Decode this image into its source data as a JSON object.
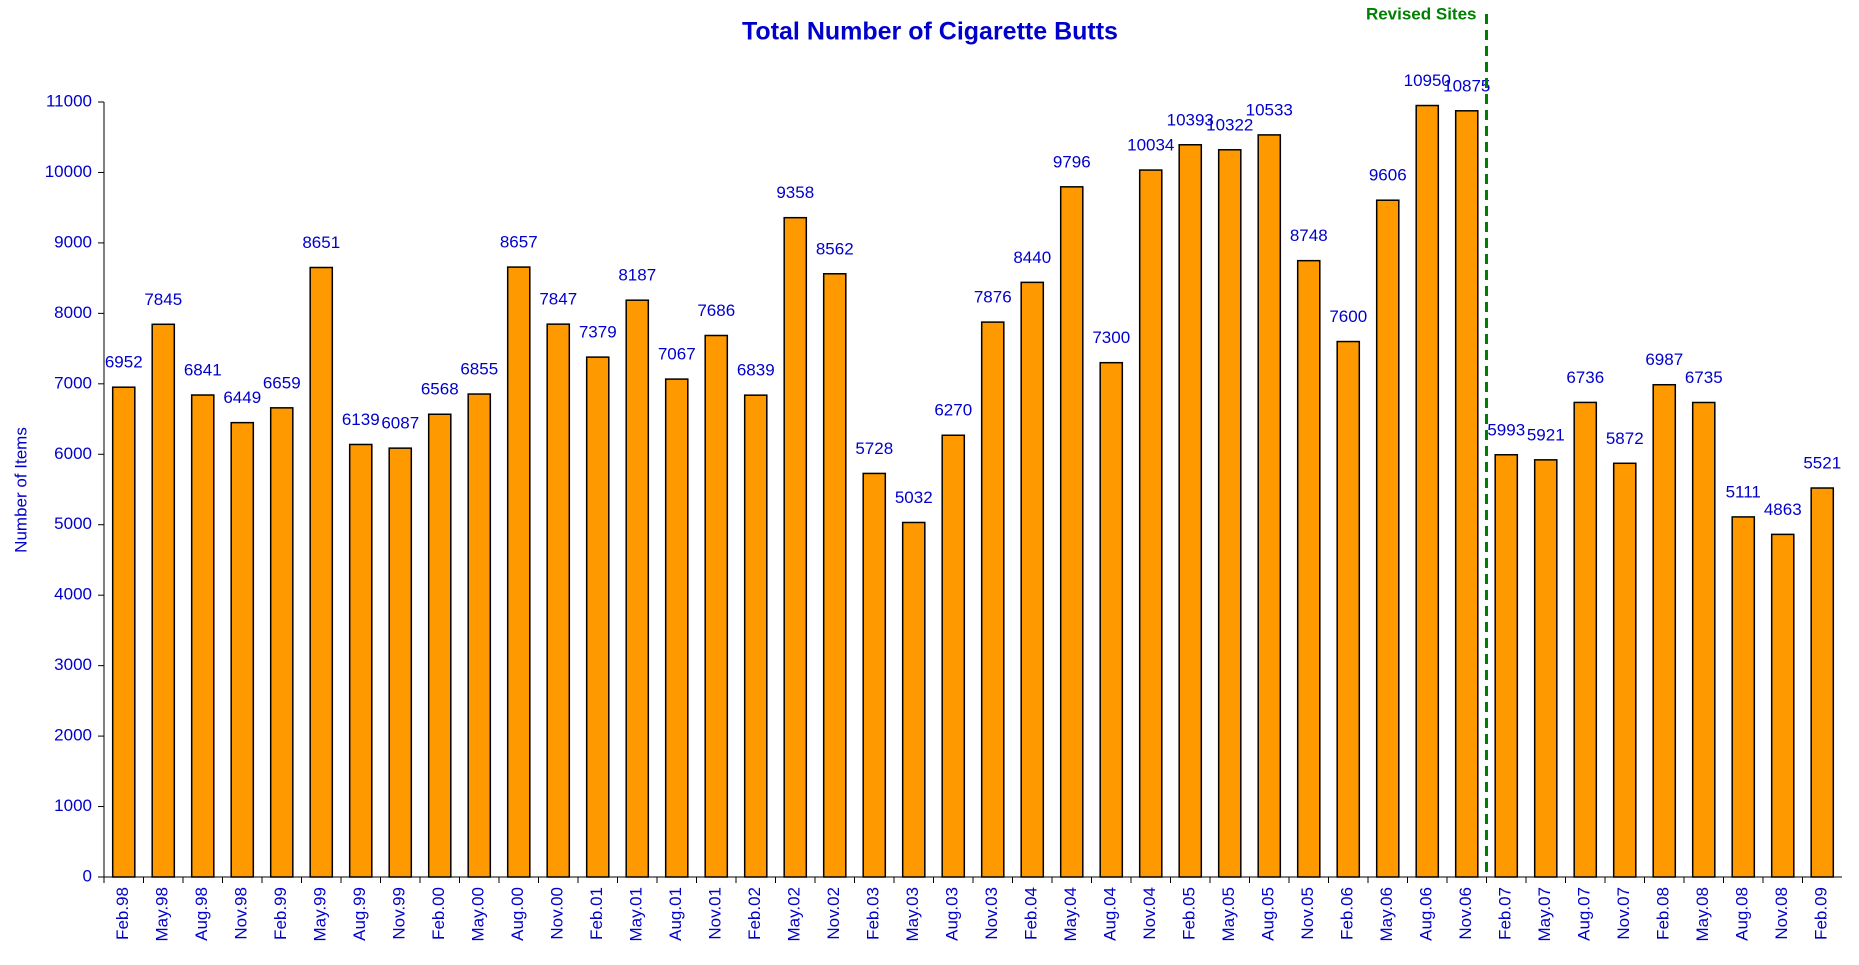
{
  "chart_data": {
    "type": "bar",
    "title": "Total Number of Cigarette Butts",
    "y_label": "Number of Items",
    "categories": [
      "Feb.98",
      "May.98",
      "Aug.98",
      "Nov.98",
      "Feb.99",
      "May.99",
      "Aug.99",
      "Nov.99",
      "Feb.00",
      "May.00",
      "Aug.00",
      "Nov.00",
      "Feb.01",
      "May.01",
      "Aug.01",
      "Nov.01",
      "Feb.02",
      "May.02",
      "Nov.02",
      "Feb.03",
      "May.03",
      "Aug.03",
      "Nov.03",
      "Feb.04",
      "May.04",
      "Aug.04",
      "Nov.04",
      "Feb.05",
      "May.05",
      "Aug.05",
      "Nov.05",
      "Feb.06",
      "May.06",
      "Aug.06",
      "Nov.06",
      "Feb.07",
      "May.07",
      "Aug.07",
      "Nov.07",
      "Feb.08",
      "May.08",
      "Aug.08",
      "Nov.08",
      "Feb.09"
    ],
    "values": [
      6952,
      7845,
      6841,
      6449,
      6659,
      8651,
      6139,
      6087,
      6568,
      6855,
      8657,
      7847,
      7379,
      8187,
      7067,
      7686,
      6839,
      9358,
      8562,
      5728,
      5032,
      6270,
      7876,
      8440,
      9796,
      7300,
      10034,
      10393,
      10322,
      10533,
      8748,
      7600,
      9606,
      10950,
      10875,
      5993,
      5921,
      6736,
      5872,
      6987,
      6735,
      5111,
      4863,
      5521
    ],
    "color": "#ff9900",
    "ylim": [
      0,
      11000
    ],
    "yticks": [
      0,
      1000,
      2000,
      3000,
      4000,
      5000,
      6000,
      7000,
      8000,
      9000,
      10000,
      11000
    ],
    "grid": false,
    "annotations": [
      {
        "text": "Revised Sites",
        "x": "Feb.07",
        "color": "#008000"
      }
    ]
  }
}
